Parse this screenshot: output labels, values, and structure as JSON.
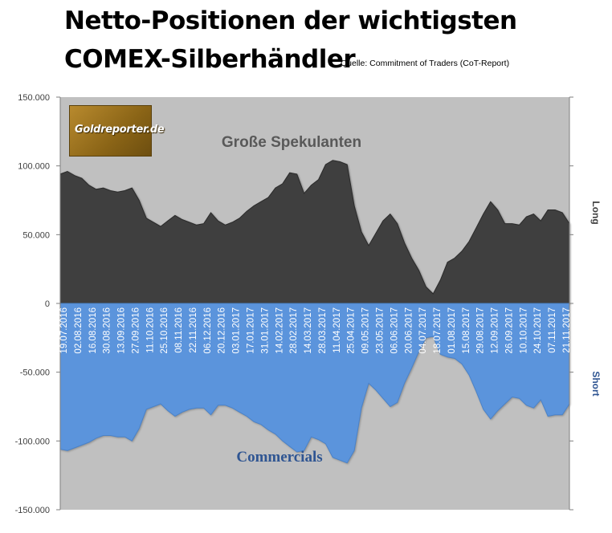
{
  "title_line1": "Netto-Positionen der wichtigsten",
  "title_line2": "COMEX-Silberhändler",
  "source": "Quelle: Commitment of Traders (CoT-Report)",
  "logo_text": "Goldreporter.de",
  "colors": {
    "plot_bg": "#c0c0c0",
    "speculators_fill": "#3f3f3f",
    "commercials_fill": "#5b94dc",
    "speculators_label": "#595959",
    "commercials_label": "#2f5592"
  },
  "chart_data": {
    "type": "area",
    "ylim": [
      -150000,
      150000
    ],
    "yticks": [
      150000,
      100000,
      50000,
      0,
      -50000,
      -100000,
      -150000
    ],
    "ytick_labels": [
      "150.000",
      "100.000",
      "50.000",
      "0",
      "-50.000",
      "-100.000",
      "-150.000"
    ],
    "right_labels": {
      "top": "Long",
      "bottom": "Short"
    },
    "x_tick_labels": [
      "19.07.2016",
      "02.08.2016",
      "16.08.2016",
      "30.08.2016",
      "13.09.2016",
      "27.09.2016",
      "11.10.2016",
      "25.10.2016",
      "08.11.2016",
      "22.11.2016",
      "06.12.2016",
      "20.12.2016",
      "03.01.2017",
      "17.01.2017",
      "31.01.2017",
      "14.02.2017",
      "28.02.2017",
      "14.03.2017",
      "28.03.2017",
      "11.04.2017",
      "25.04.2017",
      "09.05.2017",
      "23.05.2017",
      "06.06.2017",
      "20.06.2017",
      "04.07.2017",
      "18.07.2017",
      "01.08.2017",
      "15.08.2017",
      "29.08.2017",
      "12.09.2017",
      "26.09.2017",
      "10.10.2017",
      "24.10.2017",
      "07.11.2017",
      "21.11.2017"
    ],
    "series": [
      {
        "name": "Große Spekulanten",
        "values": [
          94000,
          96000,
          93000,
          91000,
          86000,
          83000,
          84000,
          82000,
          81000,
          82000,
          84000,
          75000,
          62000,
          59000,
          56000,
          60000,
          64000,
          61000,
          59000,
          57000,
          58000,
          66000,
          60000,
          57000,
          59000,
          62000,
          67000,
          71000,
          74000,
          77000,
          84000,
          87000,
          95000,
          94000,
          80000,
          86000,
          90000,
          101000,
          104000,
          103000,
          101000,
          71000,
          52000,
          42000,
          51000,
          60000,
          65000,
          58000,
          44000,
          33000,
          24000,
          12000,
          7000,
          17000,
          30000,
          33000,
          38000,
          45000,
          55000,
          65000,
          74000,
          68000,
          58000,
          58000,
          57000,
          63000,
          65000,
          60000,
          68000,
          68000,
          66000,
          58000
        ]
      },
      {
        "name": "Commercials",
        "values": [
          -106000,
          -107000,
          -105000,
          -103000,
          -101000,
          -98000,
          -96000,
          -96000,
          -97000,
          -97000,
          -100000,
          -91000,
          -77000,
          -75000,
          -73000,
          -78000,
          -82000,
          -79000,
          -77000,
          -76000,
          -76000,
          -81000,
          -74000,
          -74000,
          -76000,
          -79000,
          -82000,
          -86000,
          -88000,
          -92000,
          -95000,
          -100000,
          -104000,
          -108000,
          -107000,
          -97000,
          -99000,
          -102000,
          -112000,
          -114000,
          -116000,
          -107000,
          -76000,
          -58000,
          -63000,
          -69000,
          -75000,
          -72000,
          -58000,
          -47000,
          -35000,
          -25000,
          -24000,
          -37000,
          -39000,
          -40000,
          -44000,
          -52000,
          -64000,
          -77000,
          -84000,
          -78000,
          -73000,
          -68000,
          -69000,
          -74000,
          -76000,
          -70000,
          -82000,
          -81000,
          -81000,
          -73000
        ]
      }
    ]
  }
}
